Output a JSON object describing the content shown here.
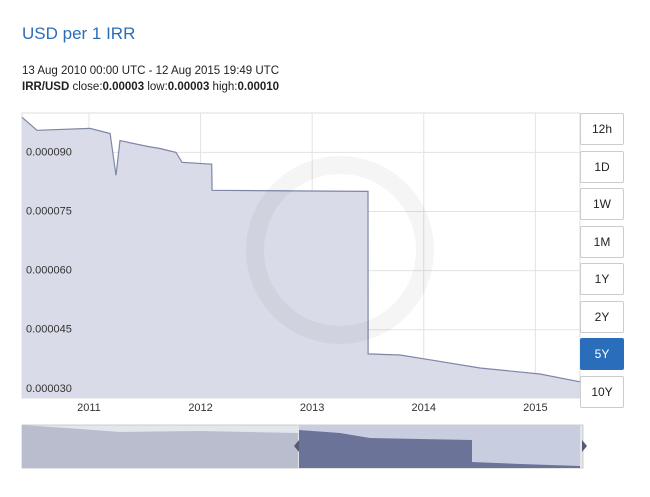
{
  "header": {
    "title": "USD per 1 IRR",
    "range": "13 Aug 2010 00:00 UTC - 12 Aug 2015 19:49 UTC",
    "pair": "IRR/USD",
    "stats": [
      {
        "label": "close:",
        "value": "0.00003"
      },
      {
        "label": "low:",
        "value": "0.00003"
      },
      {
        "label": "high:",
        "value": "0.00010"
      }
    ]
  },
  "chart_data": {
    "type": "area",
    "x": [
      2010.4,
      2010.534,
      2011.009,
      2011.189,
      2011.242,
      2011.278,
      2011.529,
      2011.637,
      2011.78,
      2011.834,
      2012.1,
      2012.103,
      2013.5,
      2013.501,
      2013.787,
      2014.056,
      2014.504,
      2015.042,
      2015.4
    ],
    "series": [
      {
        "color": "#7e86a8",
        "values": [
          9.89e-05,
          9.56e-05,
          9.61e-05,
          9.48e-05,
          8.42e-05,
          9.3e-05,
          9.15e-05,
          9.1e-05,
          9e-05,
          8.75e-05,
          8.7e-05,
          8.04e-05,
          8.01e-05,
          3.89e-05,
          3.86e-05,
          3.74e-05,
          3.53e-05,
          3.38e-05,
          3.18e-05
        ]
      }
    ],
    "fill": "#d9dce8",
    "xlim": [
      2010.4,
      2015.4
    ],
    "xticks": [
      2011,
      2012,
      2013,
      2014,
      2015
    ],
    "ylim": [
      2.77e-05,
      0.0001
    ],
    "yticks": [
      {
        "value": 3e-05,
        "label": "0.000030"
      },
      {
        "value": 4.5e-05,
        "label": "0.000045"
      },
      {
        "value": 6e-05,
        "label": "0.000060"
      },
      {
        "value": 7.5e-05,
        "label": "0.000075"
      },
      {
        "value": 9e-05,
        "label": "0.000090"
      }
    ],
    "grid": true
  },
  "range_buttons": {
    "options": [
      "12h",
      "1D",
      "1W",
      "1M",
      "1Y",
      "2Y",
      "5Y",
      "10Y"
    ],
    "selected": "5Y"
  }
}
